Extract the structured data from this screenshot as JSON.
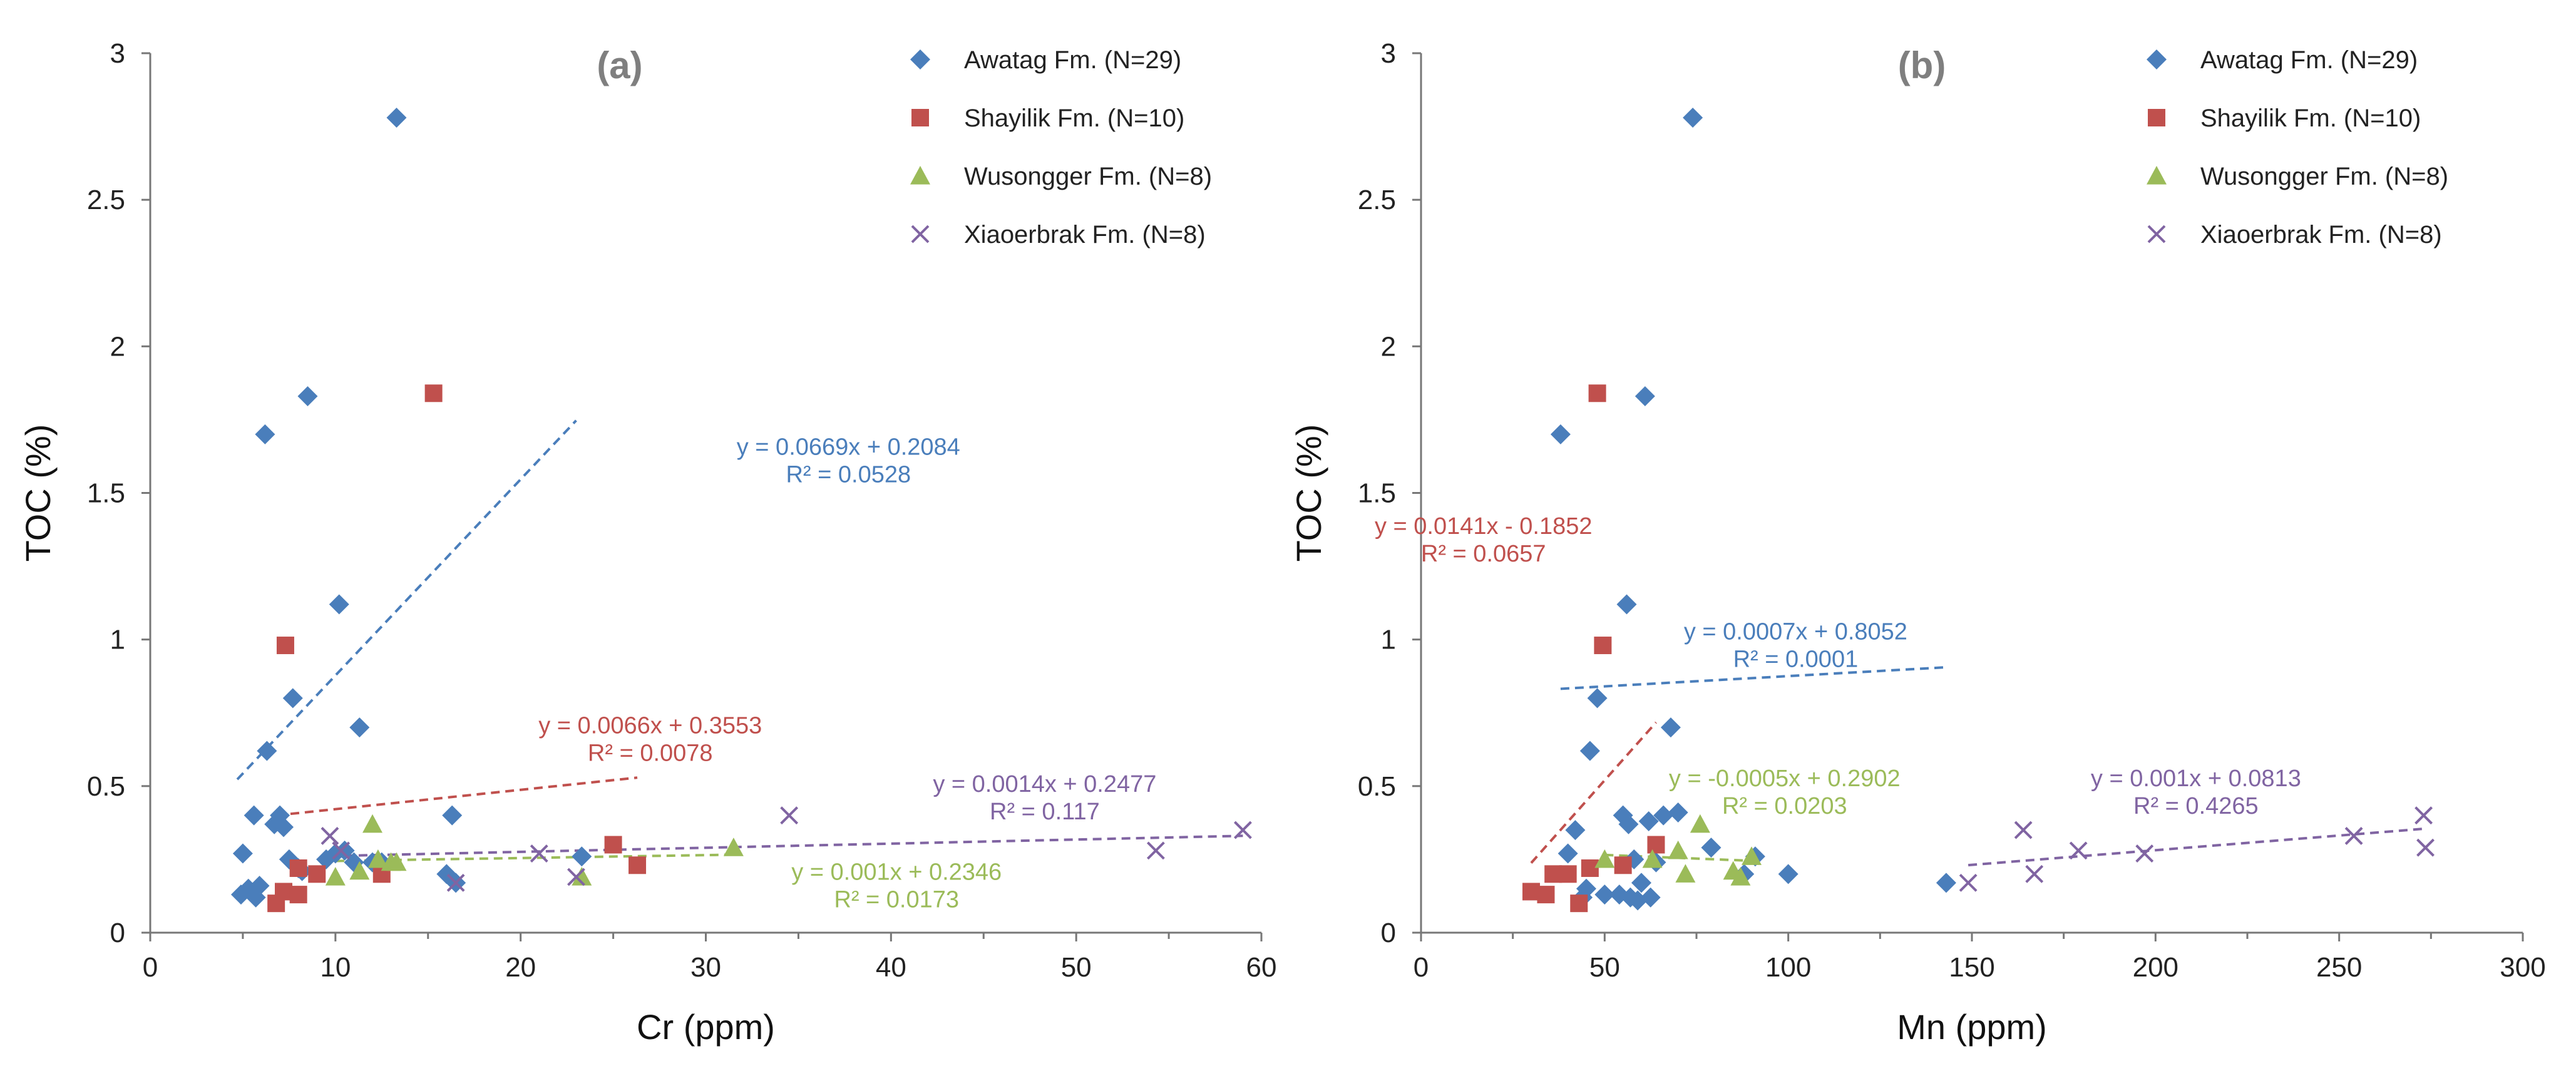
{
  "chart_data": [
    {
      "type": "scatter",
      "panel_label": "(a)",
      "xlabel": "Cr (ppm)",
      "ylabel": "TOC (%)",
      "xlim": [
        0,
        60
      ],
      "ylim": [
        0,
        3
      ],
      "xticks": [
        0,
        10,
        20,
        30,
        40,
        50,
        60
      ],
      "yticks": [
        0,
        0.5,
        1,
        1.5,
        2,
        2.5,
        3
      ],
      "xtick_labels": [
        "0",
        "10",
        "20",
        "30",
        "40",
        "50",
        "60"
      ],
      "ytick_labels": [
        "0",
        "0.5",
        "1",
        "1.5",
        "2",
        "2.5",
        "3"
      ],
      "grid": false,
      "legend_position": "top-right",
      "series": [
        {
          "name": "Awatag Fm. (N=29)",
          "marker": "diamond",
          "color": "#4a7ebb",
          "points": [
            [
              4.9,
              0.13
            ],
            [
              5.0,
              0.27
            ],
            [
              5.3,
              0.15
            ],
            [
              5.6,
              0.4
            ],
            [
              5.7,
              0.12
            ],
            [
              5.9,
              0.16
            ],
            [
              6.2,
              1.7
            ],
            [
              6.3,
              0.62
            ],
            [
              6.7,
              0.37
            ],
            [
              7.0,
              0.4
            ],
            [
              7.2,
              0.36
            ],
            [
              7.5,
              0.25
            ],
            [
              7.7,
              0.8
            ],
            [
              8.0,
              0.22
            ],
            [
              8.2,
              0.21
            ],
            [
              8.5,
              1.83
            ],
            [
              9.5,
              0.25
            ],
            [
              10.0,
              0.27
            ],
            [
              10.2,
              1.12
            ],
            [
              10.5,
              0.28
            ],
            [
              11.0,
              0.24
            ],
            [
              11.3,
              0.7
            ],
            [
              12.0,
              0.24
            ],
            [
              12.5,
              0.24
            ],
            [
              13.3,
              2.78
            ],
            [
              16.0,
              0.2
            ],
            [
              16.3,
              0.4
            ],
            [
              16.5,
              0.17
            ],
            [
              23.3,
              0.26
            ]
          ]
        },
        {
          "name": "Shayilik Fm. (N=10)",
          "marker": "square",
          "color": "#c0504d",
          "points": [
            [
              6.8,
              0.1
            ],
            [
              7.2,
              0.14
            ],
            [
              7.3,
              0.98
            ],
            [
              8.0,
              0.22
            ],
            [
              8.0,
              0.13
            ],
            [
              9.0,
              0.2
            ],
            [
              12.5,
              0.2
            ],
            [
              15.3,
              1.84
            ],
            [
              25.0,
              0.3
            ],
            [
              26.3,
              0.23
            ]
          ]
        },
        {
          "name": "Wusongger Fm. (N=8)",
          "marker": "triangle",
          "color": "#9bbb59",
          "points": [
            [
              10.0,
              0.19
            ],
            [
              11.3,
              0.21
            ],
            [
              12.0,
              0.37
            ],
            [
              12.3,
              0.25
            ],
            [
              13.0,
              0.24
            ],
            [
              13.3,
              0.24
            ],
            [
              23.3,
              0.19
            ],
            [
              31.5,
              0.29
            ]
          ]
        },
        {
          "name": "Xiaoerbrak Fm. (N=8)",
          "marker": "x",
          "color": "#8064a2",
          "points": [
            [
              9.7,
              0.33
            ],
            [
              16.5,
              0.17
            ],
            [
              21.0,
              0.27
            ],
            [
              23.0,
              0.19
            ],
            [
              34.5,
              0.4
            ],
            [
              54.3,
              0.28
            ],
            [
              59.0,
              0.35
            ],
            [
              10.3,
              0.28
            ]
          ]
        }
      ],
      "trendlines": [
        {
          "series": "Awatag Fm. (N=29)",
          "color": "#4a7ebb",
          "slope": 0.0669,
          "intercept": 0.2084,
          "x_range": [
            4.7,
            23.0
          ],
          "equation": "y = 0.0669x + 0.2084",
          "r2": "R² = 0.0528",
          "label_at": [
            37.7,
            1.63
          ]
        },
        {
          "series": "Shayilik Fm. (N=10)",
          "color": "#c0504d",
          "slope": 0.0066,
          "intercept": 0.3553,
          "x_range": [
            6.8,
            26.3
          ],
          "equation": "y = 0.0066x + 0.3553",
          "r2": "R² = 0.0078",
          "label_at": [
            27.0,
            0.68
          ]
        },
        {
          "series": "Wusongger Fm. (N=8)",
          "color": "#9bbb59",
          "slope": 0.001,
          "intercept": 0.2346,
          "x_range": [
            10.0,
            31.5
          ],
          "equation": "y = 0.001x + 0.2346",
          "r2": "R² = 0.0173",
          "label_at": [
            40.3,
            0.18
          ]
        },
        {
          "series": "Xiaoerbrak Fm. (N=8)",
          "color": "#8064a2",
          "slope": 0.0014,
          "intercept": 0.2477,
          "x_range": [
            9.7,
            59.0
          ],
          "equation": "y = 0.0014x + 0.2477",
          "r2": "R² = 0.117",
          "label_at": [
            48.3,
            0.48
          ]
        }
      ]
    },
    {
      "type": "scatter",
      "panel_label": "(b)",
      "xlabel": "Mn (ppm)",
      "ylabel": "TOC (%)",
      "xlim": [
        0,
        300
      ],
      "ylim": [
        0,
        3
      ],
      "xticks": [
        0,
        50,
        100,
        150,
        200,
        250,
        300
      ],
      "yticks": [
        0,
        0.5,
        1,
        1.5,
        2,
        2.5,
        3
      ],
      "xtick_labels": [
        "0",
        "50",
        "100",
        "150",
        "200",
        "250",
        "300"
      ],
      "ytick_labels": [
        "0",
        "0.5",
        "1",
        "1.5",
        "2",
        "2.5",
        "3"
      ],
      "grid": false,
      "legend_position": "top-right",
      "series": [
        {
          "name": "Awatag Fm. (N=29)",
          "marker": "diamond",
          "color": "#4a7ebb",
          "points": [
            [
              38.0,
              1.7
            ],
            [
              40.0,
              0.27
            ],
            [
              42.0,
              0.35
            ],
            [
              44.0,
              0.12
            ],
            [
              45.0,
              0.15
            ],
            [
              46.0,
              0.62
            ],
            [
              48.0,
              0.8
            ],
            [
              50.0,
              0.13
            ],
            [
              54.0,
              0.13
            ],
            [
              55.0,
              0.4
            ],
            [
              56.0,
              1.12
            ],
            [
              56.5,
              0.37
            ],
            [
              57.0,
              0.12
            ],
            [
              58.0,
              0.25
            ],
            [
              59.0,
              0.11
            ],
            [
              60.0,
              0.17
            ],
            [
              61.0,
              1.83
            ],
            [
              62.0,
              0.38
            ],
            [
              62.5,
              0.12
            ],
            [
              64.0,
              0.24
            ],
            [
              66.0,
              0.4
            ],
            [
              68.0,
              0.7
            ],
            [
              70.0,
              0.41
            ],
            [
              74.0,
              2.78
            ],
            [
              79.0,
              0.29
            ],
            [
              91.0,
              0.26
            ],
            [
              100.0,
              0.2
            ],
            [
              143.0,
              0.17
            ],
            [
              88.0,
              0.2
            ]
          ]
        },
        {
          "name": "Shayilik Fm. (N=10)",
          "marker": "square",
          "color": "#c0504d",
          "points": [
            [
              30.0,
              0.14
            ],
            [
              34.0,
              0.13
            ],
            [
              36.0,
              0.2
            ],
            [
              40.0,
              0.2
            ],
            [
              43.0,
              0.1
            ],
            [
              46.0,
              0.22
            ],
            [
              48.0,
              1.84
            ],
            [
              49.5,
              0.98
            ],
            [
              55.0,
              0.23
            ],
            [
              64.0,
              0.3
            ]
          ]
        },
        {
          "name": "Wusongger Fm. (N=8)",
          "marker": "triangle",
          "color": "#9bbb59",
          "points": [
            [
              50.0,
              0.25
            ],
            [
              63.0,
              0.25
            ],
            [
              70.0,
              0.28
            ],
            [
              72.0,
              0.2
            ],
            [
              76.0,
              0.37
            ],
            [
              85.0,
              0.21
            ],
            [
              87.0,
              0.19
            ],
            [
              90.0,
              0.26
            ]
          ]
        },
        {
          "name": "Xiaoerbrak Fm. (N=8)",
          "marker": "x",
          "color": "#8064a2",
          "points": [
            [
              149.0,
              0.17
            ],
            [
              164.0,
              0.35
            ],
            [
              167.0,
              0.2
            ],
            [
              179.0,
              0.28
            ],
            [
              197.0,
              0.27
            ],
            [
              254.0,
              0.33
            ],
            [
              273.0,
              0.4
            ],
            [
              273.5,
              0.29
            ]
          ]
        }
      ],
      "trendlines": [
        {
          "series": "Awatag Fm. (N=29)",
          "color": "#4a7ebb",
          "slope": 0.0007,
          "intercept": 0.8052,
          "x_range": [
            38.0,
            143.0
          ],
          "equation": "y = 0.0007x + 0.8052",
          "r2": "R² = 0.0001",
          "label_at": [
            102.0,
            1.0
          ]
        },
        {
          "series": "Shayilik Fm. (N=10)",
          "color": "#c0504d",
          "slope": 0.0141,
          "intercept": -0.1852,
          "x_range": [
            30.0,
            64.0
          ],
          "equation": "y = 0.0141x - 0.1852",
          "r2": "R² = 0.0657",
          "label_at": [
            17.0,
            1.36
          ]
        },
        {
          "series": "Wusongger Fm. (N=8)",
          "color": "#9bbb59",
          "slope": -0.0005,
          "intercept": 0.2902,
          "x_range": [
            50.0,
            90.0
          ],
          "equation": "y = -0.0005x + 0.2902",
          "r2": "R² = 0.0203",
          "label_at": [
            99.0,
            0.5
          ]
        },
        {
          "series": "Xiaoerbrak Fm. (N=8)",
          "color": "#8064a2",
          "slope": 0.001,
          "intercept": 0.0813,
          "x_range": [
            149.0,
            273.5
          ],
          "equation": "y = 0.001x + 0.0813",
          "r2": "R² = 0.4265",
          "label_at": [
            211.0,
            0.5
          ]
        }
      ]
    }
  ]
}
